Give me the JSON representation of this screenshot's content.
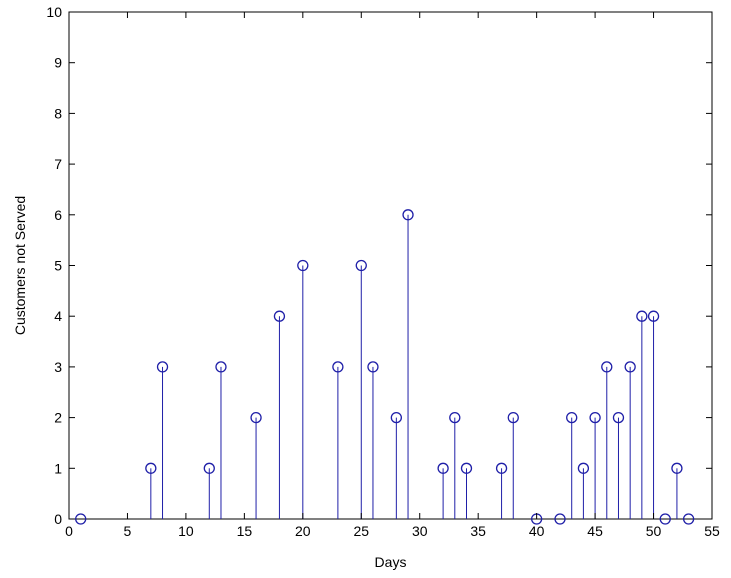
{
  "chart_data": {
    "type": "stem",
    "title": "",
    "xlabel": "Days",
    "ylabel": "Customers not Served",
    "xlim": [
      0,
      55
    ],
    "ylim": [
      0,
      10
    ],
    "xticks": [
      0,
      5,
      10,
      15,
      20,
      25,
      30,
      35,
      40,
      45,
      50,
      55
    ],
    "yticks": [
      0,
      1,
      2,
      3,
      4,
      5,
      6,
      7,
      8,
      9,
      10
    ],
    "xtick_labels": [
      "0",
      "5",
      "10",
      "15",
      "20",
      "25",
      "30",
      "35",
      "40",
      "45",
      "50",
      "55"
    ],
    "ytick_labels": [
      "0",
      "1",
      "2",
      "3",
      "4",
      "5",
      "6",
      "7",
      "8",
      "9",
      "10"
    ],
    "grid": false,
    "legend": "none",
    "marker": "circle",
    "color": "#1f1fa8",
    "x": [
      1,
      7,
      8,
      12,
      13,
      16,
      18,
      20,
      23,
      25,
      26,
      28,
      29,
      32,
      33,
      34,
      37,
      38,
      40,
      42,
      43,
      44,
      45,
      46,
      47,
      48,
      49,
      50,
      51,
      52,
      53
    ],
    "y": [
      0,
      1,
      3,
      1,
      3,
      2,
      4,
      5,
      3,
      5,
      3,
      2,
      6,
      1,
      2,
      1,
      1,
      2,
      0,
      0,
      2,
      1,
      2,
      3,
      2,
      3,
      4,
      4,
      0,
      1,
      0
    ]
  }
}
